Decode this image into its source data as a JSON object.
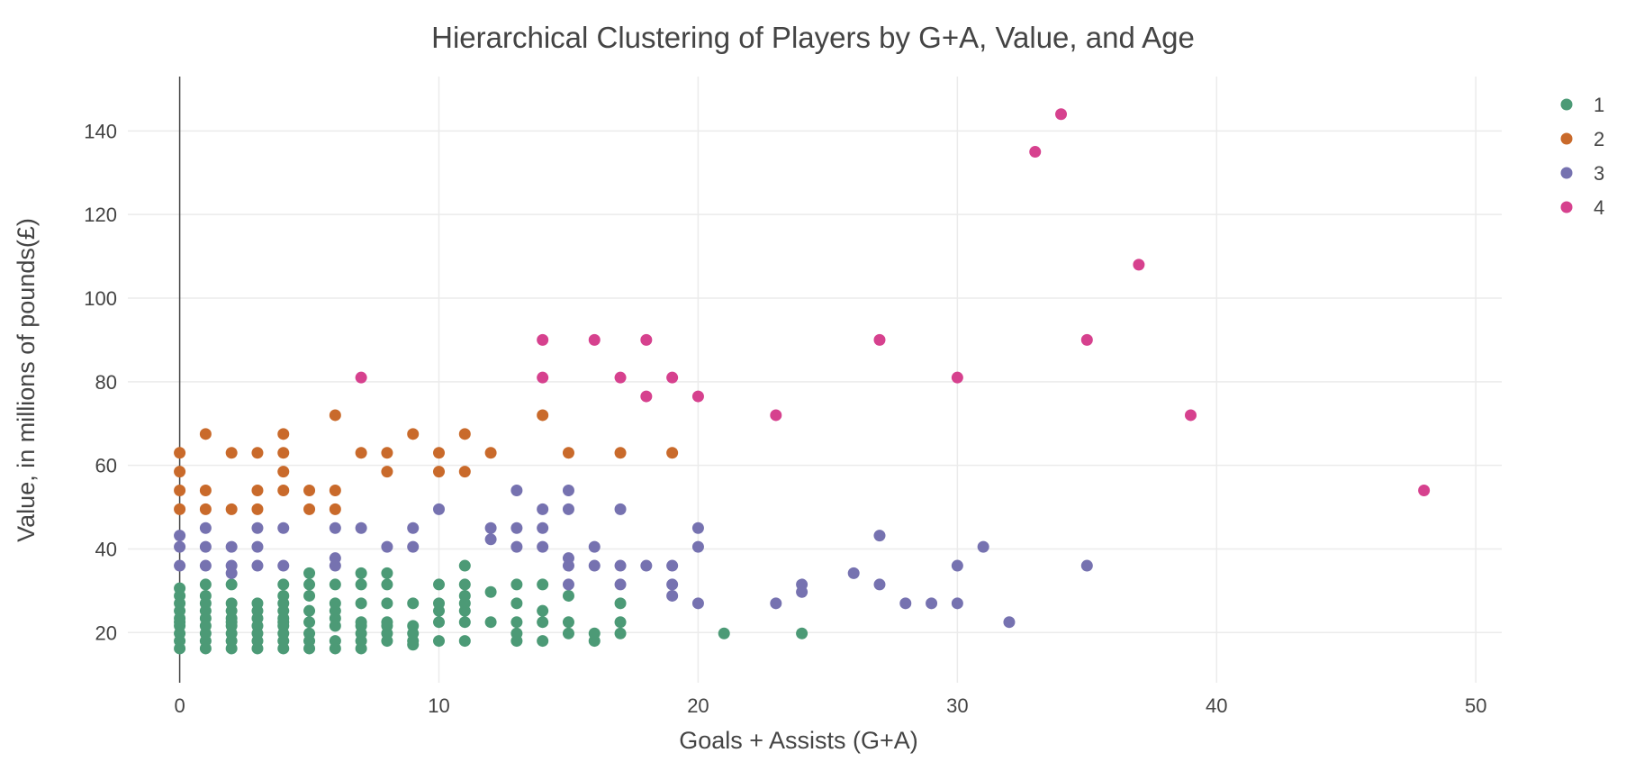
{
  "chart_data": {
    "type": "scatter",
    "title": "Hierarchical Clustering of Players by G+A, Value, and Age",
    "xlabel": "Goals + Assists (G+A)",
    "ylabel": "Value, in millions of pounds(£)",
    "xlim": [
      -2,
      51
    ],
    "ylim": [
      8,
      153
    ],
    "x_ticks": [
      0,
      10,
      20,
      30,
      40,
      50
    ],
    "y_ticks": [
      20,
      40,
      60,
      80,
      100,
      120,
      140
    ],
    "grid": true,
    "legend_position": "top-right",
    "series": [
      {
        "name": "1",
        "color": "#4c9a76",
        "points": [
          [
            0,
            16.2
          ],
          [
            0,
            18
          ],
          [
            0,
            19.8
          ],
          [
            0,
            21.6
          ],
          [
            0,
            22.5
          ],
          [
            0,
            23.4
          ],
          [
            0,
            25.2
          ],
          [
            0,
            27
          ],
          [
            0,
            28.8
          ],
          [
            0,
            30.6
          ],
          [
            1,
            16.2
          ],
          [
            1,
            18
          ],
          [
            1,
            19.8
          ],
          [
            1,
            21.6
          ],
          [
            1,
            23.4
          ],
          [
            1,
            25.2
          ],
          [
            1,
            27
          ],
          [
            1,
            28.8
          ],
          [
            1,
            31.5
          ],
          [
            2,
            16.2
          ],
          [
            2,
            18
          ],
          [
            2,
            19.8
          ],
          [
            2,
            21.6
          ],
          [
            2,
            22.5
          ],
          [
            2,
            23.4
          ],
          [
            2,
            25.2
          ],
          [
            2,
            27
          ],
          [
            2,
            31.5
          ],
          [
            3,
            16.2
          ],
          [
            3,
            18
          ],
          [
            3,
            19.8
          ],
          [
            3,
            21.6
          ],
          [
            3,
            23.4
          ],
          [
            3,
            25.2
          ],
          [
            3,
            27
          ],
          [
            4,
            16.2
          ],
          [
            4,
            18
          ],
          [
            4,
            19.8
          ],
          [
            4,
            21.6
          ],
          [
            4,
            22.5
          ],
          [
            4,
            23.4
          ],
          [
            4,
            25.2
          ],
          [
            4,
            27
          ],
          [
            4,
            28.8
          ],
          [
            4,
            31.5
          ],
          [
            5,
            16.2
          ],
          [
            5,
            18
          ],
          [
            5,
            19.8
          ],
          [
            5,
            22.5
          ],
          [
            5,
            25.2
          ],
          [
            5,
            28.8
          ],
          [
            5,
            31.5
          ],
          [
            5,
            34.2
          ],
          [
            6,
            16.2
          ],
          [
            6,
            18
          ],
          [
            6,
            21.6
          ],
          [
            6,
            23.4
          ],
          [
            6,
            25.2
          ],
          [
            6,
            27
          ],
          [
            6,
            31.5
          ],
          [
            7,
            16.2
          ],
          [
            7,
            18
          ],
          [
            7,
            19.8
          ],
          [
            7,
            21.6
          ],
          [
            7,
            22.5
          ],
          [
            7,
            27
          ],
          [
            7,
            31.5
          ],
          [
            7,
            34.2
          ],
          [
            8,
            18
          ],
          [
            8,
            19.8
          ],
          [
            8,
            21.6
          ],
          [
            8,
            22.5
          ],
          [
            8,
            27
          ],
          [
            8,
            31.5
          ],
          [
            8,
            34.2
          ],
          [
            9,
            17.1
          ],
          [
            9,
            18
          ],
          [
            9,
            19.8
          ],
          [
            9,
            21.6
          ],
          [
            9,
            27
          ],
          [
            10,
            18
          ],
          [
            10,
            22.5
          ],
          [
            10,
            25.2
          ],
          [
            10,
            27
          ],
          [
            10,
            31.5
          ],
          [
            11,
            18
          ],
          [
            11,
            22.5
          ],
          [
            11,
            25.2
          ],
          [
            11,
            27
          ],
          [
            11,
            28.8
          ],
          [
            11,
            31.5
          ],
          [
            11,
            36
          ],
          [
            12,
            22.5
          ],
          [
            12,
            29.7
          ],
          [
            13,
            18
          ],
          [
            13,
            19.8
          ],
          [
            13,
            22.5
          ],
          [
            13,
            27
          ],
          [
            13,
            31.5
          ],
          [
            14,
            18
          ],
          [
            14,
            22.5
          ],
          [
            14,
            25.2
          ],
          [
            14,
            31.5
          ],
          [
            15,
            19.8
          ],
          [
            15,
            22.5
          ],
          [
            15,
            28.8
          ],
          [
            16,
            18
          ],
          [
            16,
            19.8
          ],
          [
            17,
            19.8
          ],
          [
            17,
            22.5
          ],
          [
            17,
            27
          ],
          [
            21,
            19.8
          ],
          [
            24,
            19.8
          ]
        ]
      },
      {
        "name": "2",
        "color": "#c96a2b",
        "points": [
          [
            0,
            49.5
          ],
          [
            0,
            54
          ],
          [
            0,
            58.5
          ],
          [
            0,
            63
          ],
          [
            1,
            49.5
          ],
          [
            1,
            54
          ],
          [
            1,
            67.5
          ],
          [
            2,
            49.5
          ],
          [
            2,
            63
          ],
          [
            3,
            49.5
          ],
          [
            3,
            54
          ],
          [
            3,
            63
          ],
          [
            4,
            54
          ],
          [
            4,
            58.5
          ],
          [
            4,
            63
          ],
          [
            4,
            67.5
          ],
          [
            5,
            49.5
          ],
          [
            5,
            54
          ],
          [
            6,
            49.5
          ],
          [
            6,
            54
          ],
          [
            6,
            72
          ],
          [
            7,
            63
          ],
          [
            8,
            58.5
          ],
          [
            8,
            63
          ],
          [
            9,
            67.5
          ],
          [
            10,
            58.5
          ],
          [
            10,
            63
          ],
          [
            11,
            58.5
          ],
          [
            11,
            67.5
          ],
          [
            12,
            63
          ],
          [
            14,
            72
          ],
          [
            15,
            63
          ],
          [
            17,
            63
          ],
          [
            19,
            63
          ]
        ]
      },
      {
        "name": "3",
        "color": "#7672b0",
        "points": [
          [
            0,
            36
          ],
          [
            0,
            40.5
          ],
          [
            0,
            43.2
          ],
          [
            1,
            36
          ],
          [
            1,
            40.5
          ],
          [
            1,
            45
          ],
          [
            2,
            34.2
          ],
          [
            2,
            36
          ],
          [
            2,
            40.5
          ],
          [
            3,
            36
          ],
          [
            3,
            40.5
          ],
          [
            3,
            45
          ],
          [
            4,
            36
          ],
          [
            4,
            45
          ],
          [
            6,
            36
          ],
          [
            6,
            37.8
          ],
          [
            6,
            45
          ],
          [
            7,
            45
          ],
          [
            8,
            40.5
          ],
          [
            9,
            40.5
          ],
          [
            9,
            45
          ],
          [
            10,
            49.5
          ],
          [
            12,
            42.3
          ],
          [
            12,
            45
          ],
          [
            13,
            40.5
          ],
          [
            13,
            45
          ],
          [
            13,
            54
          ],
          [
            14,
            40.5
          ],
          [
            14,
            45
          ],
          [
            14,
            49.5
          ],
          [
            15,
            31.5
          ],
          [
            15,
            36
          ],
          [
            15,
            37.8
          ],
          [
            15,
            49.5
          ],
          [
            15,
            54
          ],
          [
            16,
            36
          ],
          [
            16,
            40.5
          ],
          [
            17,
            31.5
          ],
          [
            17,
            36
          ],
          [
            17,
            49.5
          ],
          [
            18,
            36
          ],
          [
            19,
            28.8
          ],
          [
            19,
            31.5
          ],
          [
            19,
            36
          ],
          [
            20,
            27
          ],
          [
            20,
            40.5
          ],
          [
            20,
            45
          ],
          [
            23,
            27
          ],
          [
            24,
            29.7
          ],
          [
            24,
            31.5
          ],
          [
            26,
            34.2
          ],
          [
            27,
            31.5
          ],
          [
            27,
            43.2
          ],
          [
            28,
            27
          ],
          [
            29,
            27
          ],
          [
            30,
            27
          ],
          [
            30,
            36
          ],
          [
            31,
            40.5
          ],
          [
            32,
            22.5
          ],
          [
            35,
            36
          ]
        ]
      },
      {
        "name": "4",
        "color": "#d6418e",
        "points": [
          [
            7,
            81
          ],
          [
            14,
            81
          ],
          [
            14,
            90
          ],
          [
            16,
            90
          ],
          [
            17,
            81
          ],
          [
            18,
            76.5
          ],
          [
            18,
            90
          ],
          [
            19,
            81
          ],
          [
            20,
            76.5
          ],
          [
            23,
            72
          ],
          [
            27,
            90
          ],
          [
            30,
            81
          ],
          [
            33,
            135
          ],
          [
            34,
            144
          ],
          [
            35,
            90
          ],
          [
            37,
            108
          ],
          [
            39,
            72
          ],
          [
            48,
            54
          ]
        ]
      }
    ]
  }
}
